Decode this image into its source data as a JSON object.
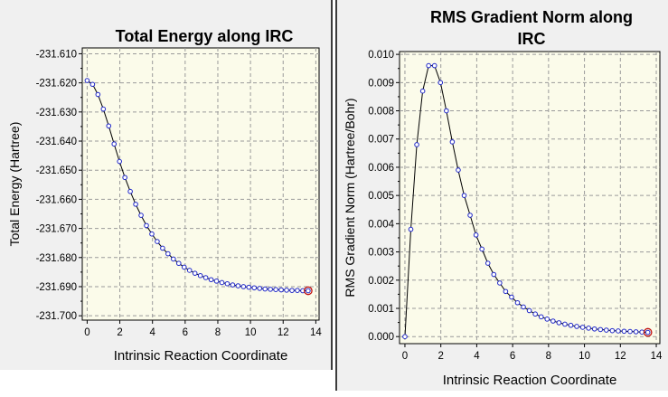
{
  "chart_data": [
    {
      "type": "line",
      "title": "Total Energy along IRC",
      "xlabel": "Intrinsic Reaction Coordinate",
      "ylabel": "Total Energy (Hartree)",
      "xlim": [
        -0.3,
        14.2
      ],
      "ylim": [
        -231.7015,
        -231.608
      ],
      "xticks": [
        0,
        2,
        4,
        6,
        8,
        10,
        12,
        14
      ],
      "xtick_labels": [
        "0",
        "2",
        "4",
        "6",
        "8",
        "10",
        "12",
        "14"
      ],
      "yticks": [
        -231.61,
        -231.62,
        -231.63,
        -231.64,
        -231.65,
        -231.66,
        -231.67,
        -231.68,
        -231.69,
        -231.7
      ],
      "ytick_labels": [
        "-231.610",
        "-231.620",
        "-231.630",
        "-231.640",
        "-231.650",
        "-231.660",
        "-231.670",
        "-231.680",
        "-231.690",
        "-231.700"
      ],
      "grid": true,
      "x": [
        0,
        0.33,
        0.66,
        0.99,
        1.32,
        1.65,
        1.98,
        2.31,
        2.64,
        2.97,
        3.3,
        3.63,
        3.96,
        4.29,
        4.62,
        4.95,
        5.28,
        5.61,
        5.94,
        6.27,
        6.6,
        6.93,
        7.26,
        7.59,
        7.92,
        8.25,
        8.58,
        8.91,
        9.24,
        9.57,
        9.9,
        10.23,
        10.56,
        10.89,
        11.22,
        11.55,
        11.88,
        12.21,
        12.54,
        12.87,
        13.2,
        13.53
      ],
      "y": [
        -231.6192,
        -231.6205,
        -231.624,
        -231.629,
        -231.6348,
        -231.641,
        -231.647,
        -231.6525,
        -231.6573,
        -231.6617,
        -231.6655,
        -231.669,
        -231.6719,
        -231.6745,
        -231.6768,
        -231.6787,
        -231.6805,
        -231.682,
        -231.6833,
        -231.6844,
        -231.6854,
        -231.6862,
        -231.6869,
        -231.6876,
        -231.6881,
        -231.6886,
        -231.689,
        -231.6894,
        -231.6897,
        -231.69,
        -231.6902,
        -231.6904,
        -231.6906,
        -231.6908,
        -231.6909,
        -231.691,
        -231.6911,
        -231.6912,
        -231.6913,
        -231.6913,
        -231.6914,
        -231.6914
      ]
    },
    {
      "type": "line",
      "title": "RMS Gradient Norm along IRC",
      "title_lines": [
        "RMS Gradient Norm along",
        "IRC"
      ],
      "xlabel": "Intrinsic Reaction Coordinate",
      "ylabel": "RMS Gradient Norm (Hartree/Bohr)",
      "xlim": [
        -0.3,
        14.2
      ],
      "ylim": [
        -0.00025,
        0.0101
      ],
      "xticks": [
        0,
        2,
        4,
        6,
        8,
        10,
        12,
        14
      ],
      "xtick_labels": [
        "0",
        "2",
        "4",
        "6",
        "8",
        "10",
        "12",
        "14"
      ],
      "yticks": [
        0,
        0.001,
        0.002,
        0.003,
        0.004,
        0.005,
        0.006,
        0.007,
        0.008,
        0.009,
        0.01
      ],
      "ytick_labels": [
        "0.000",
        "0.001",
        "0.002",
        "0.003",
        "0.004",
        "0.005",
        "0.006",
        "0.007",
        "0.008",
        "0.009",
        "0.010"
      ],
      "grid": true,
      "x": [
        0,
        0.33,
        0.66,
        0.99,
        1.32,
        1.65,
        1.98,
        2.31,
        2.64,
        2.97,
        3.3,
        3.63,
        3.96,
        4.29,
        4.62,
        4.95,
        5.28,
        5.61,
        5.94,
        6.27,
        6.6,
        6.93,
        7.26,
        7.59,
        7.92,
        8.25,
        8.58,
        8.91,
        9.24,
        9.57,
        9.9,
        10.23,
        10.56,
        10.89,
        11.22,
        11.55,
        11.88,
        12.21,
        12.54,
        12.87,
        13.2,
        13.53
      ],
      "y": [
        0.0,
        0.0038,
        0.0068,
        0.0087,
        0.0096,
        0.0096,
        0.009,
        0.008,
        0.0069,
        0.0059,
        0.005,
        0.0043,
        0.0036,
        0.0031,
        0.0026,
        0.0022,
        0.0019,
        0.0016,
        0.0014,
        0.0012,
        0.00105,
        0.00092,
        0.0008,
        0.0007,
        0.00062,
        0.00055,
        0.00049,
        0.00044,
        0.0004,
        0.00036,
        0.00033,
        0.0003,
        0.00027,
        0.00025,
        0.00023,
        0.00021,
        0.0002,
        0.00019,
        0.00018,
        0.00017,
        0.00016,
        0.00015
      ]
    }
  ]
}
